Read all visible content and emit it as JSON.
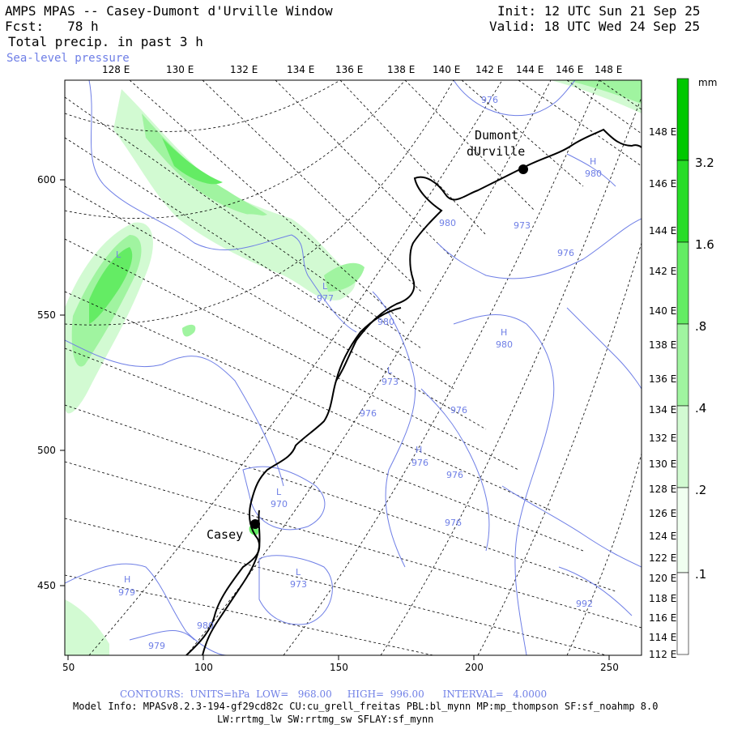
{
  "header": {
    "title": "AMPS MPAS -- Casey-Dumont d'Urville Window",
    "fcst": "Fcst:   78 h",
    "field": "Total precip. in past 3 h",
    "overlay": "Sea-level pressure",
    "init": "Init: 12 UTC Sun 21 Sep 25",
    "valid": "Valid: 18 UTC Wed 24 Sep 25"
  },
  "map": {
    "top_lon_labels": [
      "128 E",
      "130 E",
      "132 E",
      "134 E",
      "136 E",
      "138 E",
      "140 E",
      "142 E",
      "144 E",
      "146 E",
      "148 E"
    ],
    "right_lon_labels": [
      "148 E",
      "146 E",
      "144 E",
      "142 E",
      "140 E",
      "138 E",
      "136 E",
      "134 E",
      "132 E",
      "130 E",
      "128 E",
      "126 E",
      "124 E",
      "122 E",
      "120 E",
      "118 E",
      "116 E",
      "114 E",
      "112 E"
    ],
    "x_axis": [
      "50",
      "100",
      "150",
      "200",
      "250"
    ],
    "y_axis": [
      "600",
      "550",
      "500",
      "450"
    ],
    "stations": [
      {
        "name_line1": "Dumont",
        "name_line2": "dUrville"
      },
      {
        "name_line1": "Casey",
        "name_line2": ""
      }
    ],
    "pressure_labels": [
      "976",
      "980",
      "980",
      "973",
      "976",
      "H",
      "980",
      "L",
      "977",
      "980",
      "L",
      "973",
      "976",
      "976",
      "H",
      "976",
      "976",
      "976",
      "L",
      "970",
      "L",
      "973",
      "H",
      "979",
      "979",
      "H",
      "992",
      "L",
      "980"
    ]
  },
  "colorbar": {
    "unit": "mm",
    "labels": [
      "3.2",
      "1.6",
      ".8",
      ".4",
      ".2",
      ".1"
    ],
    "colors": [
      "#00c800",
      "#28dc28",
      "#64ec64",
      "#a0f4a0",
      "#d2fad2",
      "#f0fff0"
    ]
  },
  "footer": {
    "contours": "CONTOURS:  UNITS=hPa  LOW=   968.00     HIGH=  996.00      INTERVAL=   4.0000",
    "model_info": "Model Info: MPASv8.2.3-194-gf29cd82c CU:cu_grell_freitas PBL:bl_mynn MP:mp_thompson SF:sf_noahmp 8.0",
    "model_info2": "LW:rrtmg_lw SW:rrtmg_sw SFLAY:sf_mynn"
  }
}
